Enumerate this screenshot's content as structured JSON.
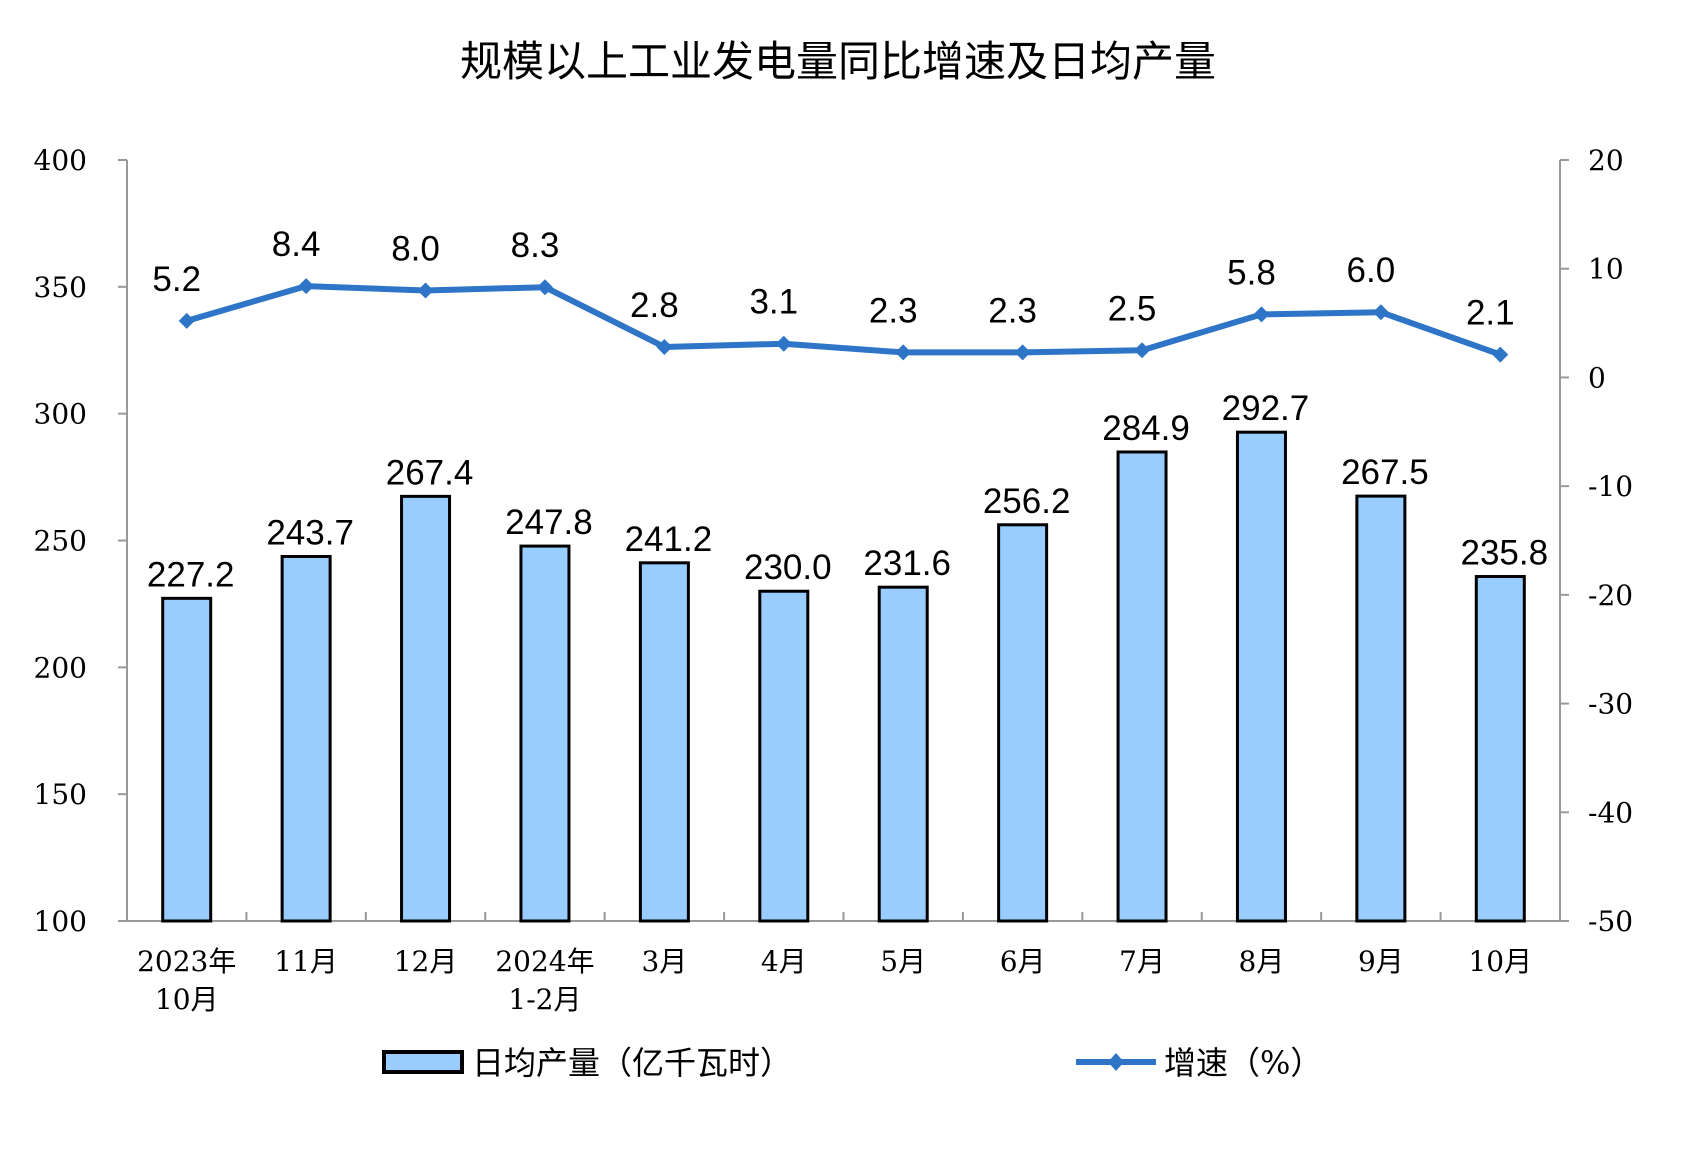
{
  "chart_data": {
    "type": "bar+line",
    "title": "规模以上工业发电量同比增速及日均产量",
    "categories": [
      [
        "2023年",
        "10月"
      ],
      [
        "11月"
      ],
      [
        "12月"
      ],
      [
        "2024年",
        "1-2月"
      ],
      [
        "3月"
      ],
      [
        "4月"
      ],
      [
        "5月"
      ],
      [
        "6月"
      ],
      [
        "7月"
      ],
      [
        "8月"
      ],
      [
        "9月"
      ],
      [
        "10月"
      ]
    ],
    "series": [
      {
        "name": "日均产量（亿千瓦时）",
        "type": "bar",
        "axis": "left",
        "color": "#99CCFF",
        "values": [
          227.2,
          243.7,
          267.4,
          247.8,
          241.2,
          230.0,
          231.6,
          256.2,
          284.9,
          292.7,
          267.5,
          235.8
        ]
      },
      {
        "name": "增速（%）",
        "type": "line",
        "axis": "right",
        "color": "#2E75C7",
        "values": [
          5.2,
          8.4,
          8.0,
          8.3,
          2.8,
          3.1,
          2.3,
          2.3,
          2.5,
          5.8,
          6.0,
          2.1
        ]
      }
    ],
    "left_axis": {
      "range": [
        100,
        400
      ],
      "ticks": [
        100,
        150,
        200,
        250,
        300,
        350,
        400
      ]
    },
    "right_axis": {
      "range": [
        -50,
        20
      ],
      "ticks": [
        -50,
        -40,
        -30,
        -20,
        -10,
        0,
        10,
        20
      ]
    },
    "grid": false,
    "legend": "bottom"
  }
}
